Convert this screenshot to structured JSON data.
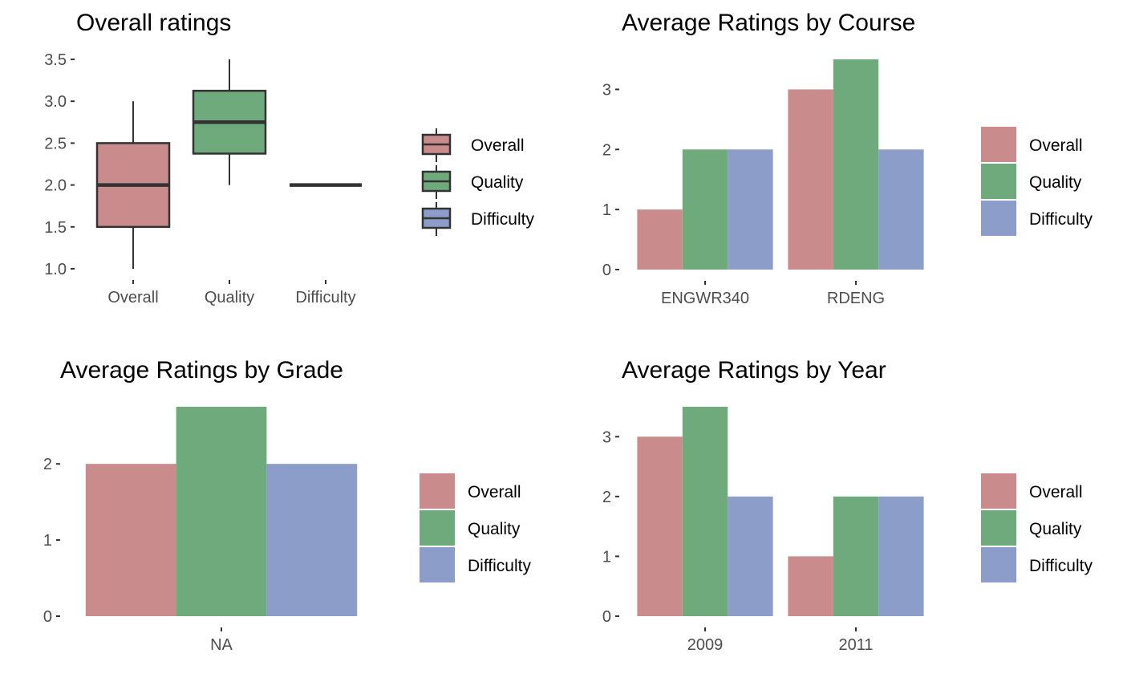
{
  "colors": {
    "Overall": "#c98b8b",
    "Quality": "#6faa7c",
    "Difficulty": "#8c9dc9",
    "outline": "#333333"
  },
  "chart_data": [
    {
      "type": "box",
      "title": "Overall ratings",
      "xlabel": "",
      "ylabel": "",
      "ylim": [
        1.0,
        3.5
      ],
      "yticks": [
        "1.0",
        "1.5",
        "2.0",
        "2.5",
        "3.0",
        "3.5"
      ],
      "categories": [
        "Overall",
        "Quality",
        "Difficulty"
      ],
      "boxes": [
        {
          "name": "Overall",
          "min": 1.0,
          "q1": 1.5,
          "median": 2.0,
          "q3": 2.5,
          "max": 3.0
        },
        {
          "name": "Quality",
          "min": 2.0,
          "q1": 2.375,
          "median": 2.75,
          "q3": 3.125,
          "max": 3.5
        },
        {
          "name": "Difficulty",
          "min": 2.0,
          "q1": 2.0,
          "median": 2.0,
          "q3": 2.0,
          "max": 2.0
        }
      ],
      "legend": [
        "Overall",
        "Quality",
        "Difficulty"
      ],
      "legend_position": "right"
    },
    {
      "type": "bar",
      "title": "Average Ratings by Course",
      "xlabel": "",
      "ylabel": "",
      "ylim": [
        0,
        3.5
      ],
      "yticks": [
        "0",
        "1",
        "2",
        "3"
      ],
      "categories": [
        "ENGWR340",
        "RDENG"
      ],
      "series": [
        {
          "name": "Overall",
          "values": [
            1,
            3
          ]
        },
        {
          "name": "Quality",
          "values": [
            2,
            3.5
          ]
        },
        {
          "name": "Difficulty",
          "values": [
            2,
            2
          ]
        }
      ],
      "legend_position": "right"
    },
    {
      "type": "bar",
      "title": "Average Ratings by Grade",
      "xlabel": "",
      "ylabel": "",
      "ylim": [
        0,
        2.75
      ],
      "yticks": [
        "0",
        "1",
        "2"
      ],
      "categories": [
        "NA"
      ],
      "series": [
        {
          "name": "Overall",
          "values": [
            2
          ]
        },
        {
          "name": "Quality",
          "values": [
            2.75
          ]
        },
        {
          "name": "Difficulty",
          "values": [
            2
          ]
        }
      ],
      "legend_position": "right"
    },
    {
      "type": "bar",
      "title": "Average Ratings by Year",
      "xlabel": "",
      "ylabel": "",
      "ylim": [
        0,
        3.5
      ],
      "yticks": [
        "0",
        "1",
        "2",
        "3"
      ],
      "categories": [
        "2009",
        "2011"
      ],
      "series": [
        {
          "name": "Overall",
          "values": [
            3,
            1
          ]
        },
        {
          "name": "Quality",
          "values": [
            3.5,
            2
          ]
        },
        {
          "name": "Difficulty",
          "values": [
            2,
            2
          ]
        }
      ],
      "legend_position": "right"
    }
  ]
}
